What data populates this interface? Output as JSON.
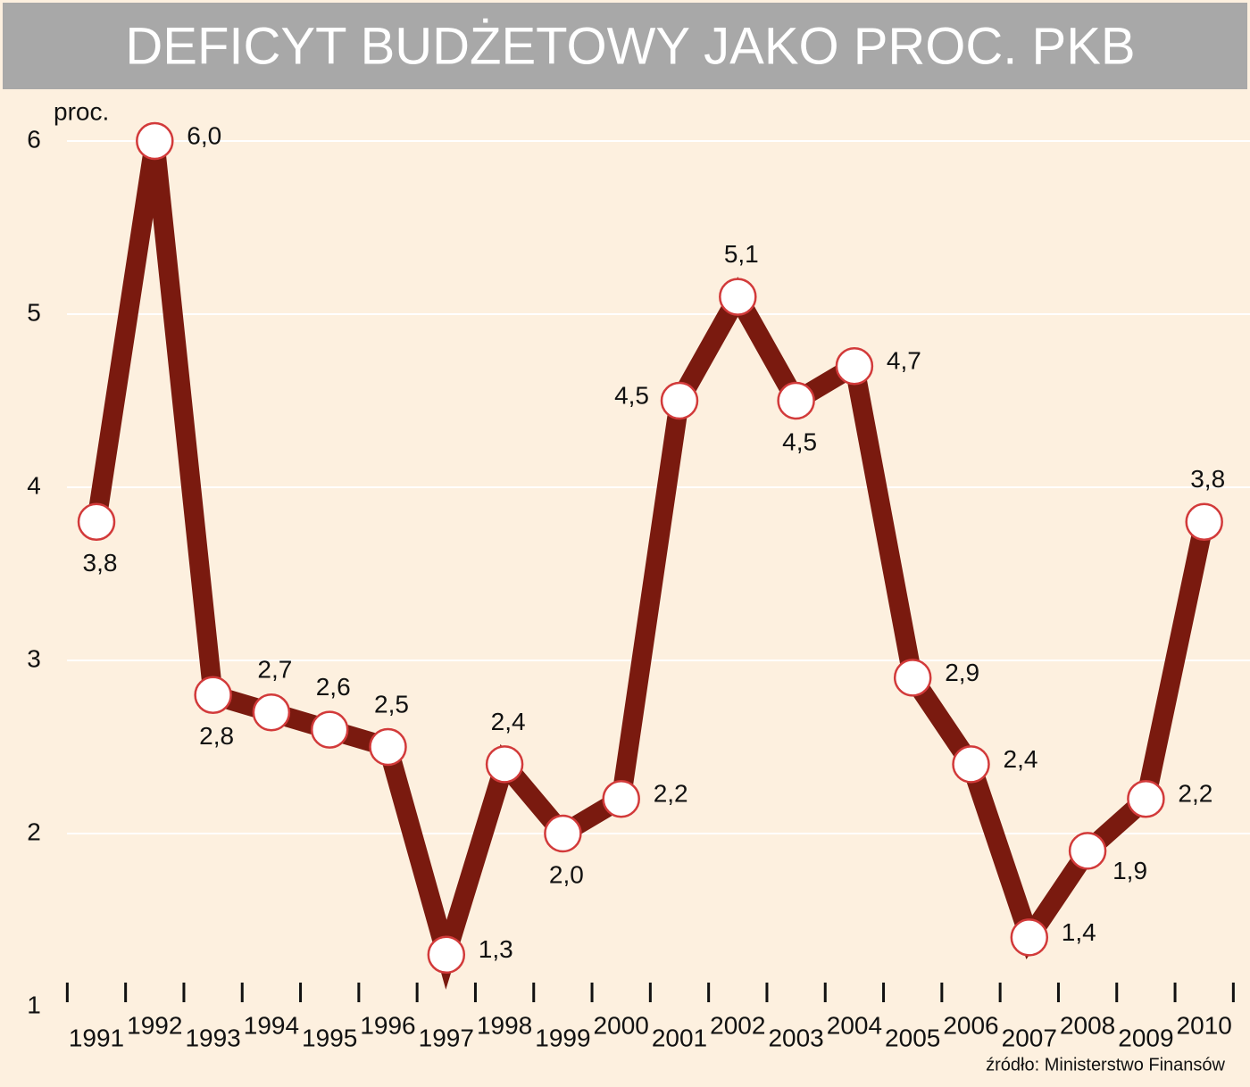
{
  "chart_data": {
    "type": "line",
    "title": "DEFICYT BUDŻETOWY JAKO PROC. PKB",
    "y_label": "proc.",
    "source": "źródło: Ministerstwo Finansów",
    "categories": [
      "1991",
      "1992",
      "1993",
      "1994",
      "1995",
      "1996",
      "1997",
      "1998",
      "1999",
      "2000",
      "2001",
      "2002",
      "2003",
      "2004",
      "2005",
      "2006",
      "2007",
      "2008",
      "2009",
      "2010"
    ],
    "values": [
      3.8,
      6.0,
      2.8,
      2.7,
      2.6,
      2.5,
      1.3,
      2.4,
      2.0,
      2.2,
      4.5,
      5.1,
      4.5,
      4.7,
      2.9,
      2.4,
      1.4,
      1.9,
      2.2,
      3.8
    ],
    "value_labels": [
      "3,8",
      "6,0",
      "2,8",
      "2,7",
      "2,6",
      "2,5",
      "1,3",
      "2,4",
      "2,0",
      "2,2",
      "4,5",
      "5,1",
      "4,5",
      "4,7",
      "2,9",
      "2,4",
      "1,4",
      "1,9",
      "2,2",
      "3,8"
    ],
    "color": "#7a1a0f",
    "marker_color": "#d23a3a",
    "ylim": [
      1,
      6
    ],
    "yticks": [
      1,
      2,
      3,
      4,
      5,
      6
    ],
    "grid": true
  }
}
